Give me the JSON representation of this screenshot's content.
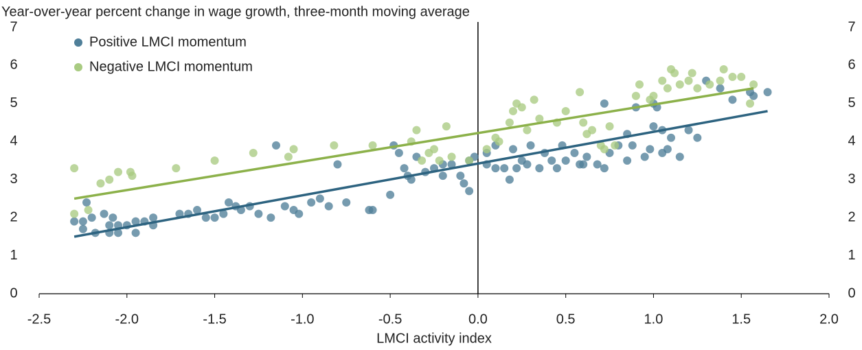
{
  "chart_data": {
    "type": "scatter",
    "title": "Year-over-year percent change in wage growth, three-month moving average",
    "x_label": "LMCI activity index",
    "xlim": [
      -2.5,
      2.0
    ],
    "xticks": [
      -2.5,
      {
        "value": -2,
        "label": "-2.0"
      },
      -1.5,
      {
        "value": -1,
        "label": "-1.0"
      },
      -0.5,
      {
        "value": 0,
        "label": "0.0"
      },
      0.5,
      {
        "value": 1,
        "label": "1.0"
      },
      1.5,
      {
        "value": 2,
        "label": "2.0"
      }
    ],
    "ylim": [
      0,
      7
    ],
    "yticks": [
      0,
      1,
      2,
      3,
      4,
      5,
      6,
      7
    ],
    "legend": "top-left",
    "series": [
      {
        "name": "Positive LMCI momentum",
        "color": "#4f7f99",
        "trend_color": "#2d6380",
        "x": [
          -2.3,
          -2.25,
          -2.25,
          -2.23,
          -2.2,
          -2.18,
          -2.13,
          -2.1,
          -2.1,
          -2.08,
          -2.05,
          -2.05,
          -2.0,
          -1.95,
          -1.95,
          -1.9,
          -1.85,
          -1.85,
          -1.7,
          -1.65,
          -1.6,
          -1.55,
          -1.5,
          -1.45,
          -1.42,
          -1.38,
          -1.35,
          -1.3,
          -1.25,
          -1.18,
          -1.15,
          -1.1,
          -1.05,
          -1.02,
          -0.95,
          -0.9,
          -0.85,
          -0.8,
          -0.75,
          -0.62,
          -0.6,
          -0.5,
          -0.48,
          -0.45,
          -0.42,
          -0.4,
          -0.38,
          -0.35,
          -0.3,
          -0.25,
          -0.2,
          -0.2,
          -0.15,
          -0.1,
          -0.08,
          -0.05,
          -0.05,
          -0.02,
          0.05,
          0.05,
          0.1,
          0.1,
          0.15,
          0.18,
          0.2,
          0.22,
          0.25,
          0.28,
          0.3,
          0.35,
          0.38,
          0.42,
          0.45,
          0.48,
          0.5,
          0.55,
          0.58,
          0.6,
          0.62,
          0.68,
          0.72,
          0.72,
          0.75,
          0.8,
          0.85,
          0.85,
          0.88,
          0.9,
          0.95,
          0.98,
          1.0,
          1.0,
          1.02,
          1.05,
          1.05,
          1.08,
          1.1,
          1.15,
          1.2,
          1.25,
          1.3,
          1.38,
          1.45,
          1.55,
          1.57,
          1.65
        ],
        "values": [
          1.9,
          1.7,
          1.9,
          2.4,
          2.0,
          1.6,
          2.1,
          1.6,
          1.8,
          2.0,
          1.6,
          1.8,
          1.8,
          1.6,
          1.9,
          1.9,
          1.8,
          2.0,
          2.1,
          2.1,
          2.2,
          2.0,
          2.0,
          2.1,
          2.4,
          2.3,
          2.2,
          2.3,
          2.1,
          2.0,
          3.9,
          2.3,
          2.2,
          2.1,
          2.4,
          2.5,
          2.3,
          3.4,
          2.4,
          2.2,
          2.2,
          2.6,
          3.9,
          3.7,
          3.3,
          3.1,
          3.0,
          3.6,
          3.2,
          3.3,
          3.1,
          3.4,
          3.4,
          3.1,
          2.9,
          2.7,
          3.5,
          3.6,
          3.7,
          3.4,
          3.3,
          3.9,
          3.3,
          3.0,
          3.8,
          3.3,
          3.5,
          3.4,
          3.9,
          3.3,
          3.7,
          3.5,
          3.3,
          3.9,
          3.5,
          3.7,
          3.4,
          3.4,
          3.6,
          3.4,
          3.3,
          5.0,
          3.7,
          3.9,
          4.2,
          3.5,
          3.9,
          4.9,
          3.6,
          3.8,
          4.4,
          5.0,
          4.9,
          4.3,
          3.7,
          3.8,
          4.1,
          3.6,
          4.3,
          4.1,
          5.6,
          5.4,
          5.1,
          5.3,
          5.2,
          5.3
        ],
        "trend": {
          "x": [
            -2.3,
            1.65
          ],
          "y": [
            1.5,
            4.8
          ]
        }
      },
      {
        "name": "Negative LMCI momentum",
        "color": "#a9cb82",
        "trend_color": "#8cb14a",
        "x": [
          -2.3,
          -2.3,
          -2.22,
          -2.15,
          -2.1,
          -2.05,
          -1.98,
          -1.97,
          -1.72,
          -1.5,
          -1.28,
          -1.08,
          -1.05,
          -0.82,
          -0.6,
          -0.38,
          -0.35,
          -0.32,
          -0.28,
          -0.25,
          -0.22,
          -0.18,
          -0.15,
          -0.05,
          0.05,
          0.1,
          0.12,
          0.18,
          0.2,
          0.22,
          0.25,
          0.28,
          0.32,
          0.35,
          0.45,
          0.5,
          0.58,
          0.6,
          0.62,
          0.65,
          0.7,
          0.72,
          0.75,
          0.78,
          0.9,
          0.92,
          0.98,
          1.0,
          1.05,
          1.08,
          1.1,
          1.12,
          1.15,
          1.2,
          1.22,
          1.25,
          1.32,
          1.38,
          1.4,
          1.45,
          1.5,
          1.55,
          1.57
        ],
        "values": [
          3.3,
          2.1,
          2.2,
          2.9,
          3.0,
          3.2,
          3.2,
          3.1,
          3.3,
          3.5,
          3.7,
          3.6,
          3.8,
          3.9,
          3.9,
          4.0,
          4.3,
          3.5,
          3.7,
          3.8,
          3.5,
          4.4,
          3.6,
          3.5,
          3.8,
          4.1,
          4.0,
          4.5,
          4.8,
          5.0,
          4.9,
          4.3,
          5.1,
          4.6,
          4.5,
          4.8,
          5.3,
          4.5,
          4.2,
          4.3,
          3.9,
          3.8,
          4.4,
          3.9,
          5.2,
          5.5,
          5.1,
          5.2,
          5.6,
          5.4,
          5.9,
          5.8,
          5.5,
          5.6,
          5.8,
          5.4,
          5.5,
          5.6,
          5.9,
          5.7,
          5.7,
          5.0,
          5.5
        ],
        "trend": {
          "x": [
            -2.3,
            1.57
          ],
          "y": [
            2.5,
            5.4
          ]
        }
      }
    ]
  }
}
